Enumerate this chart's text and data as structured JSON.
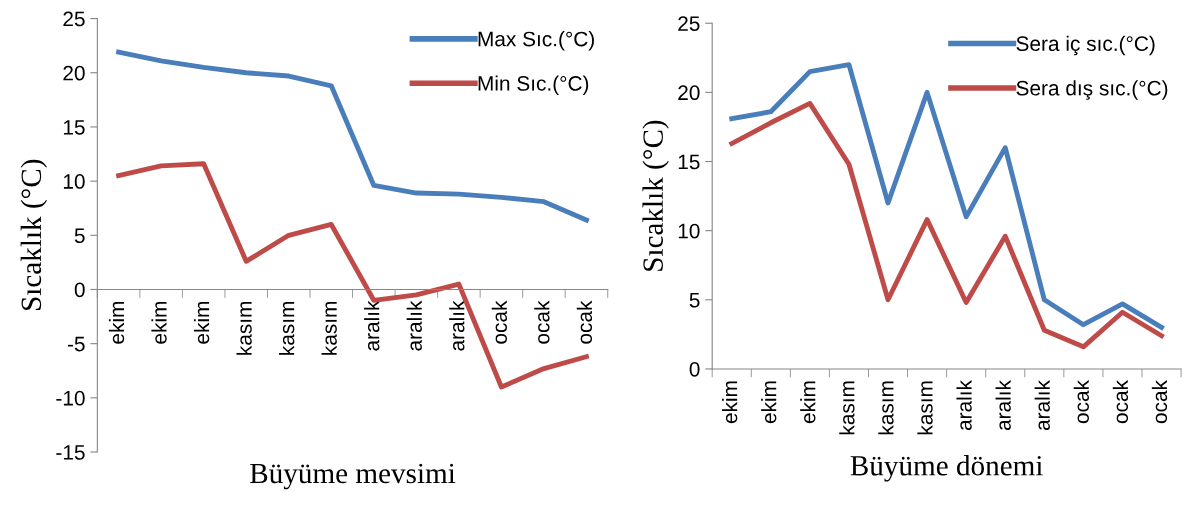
{
  "chart_data": [
    {
      "type": "line",
      "xlabel": "Büyüme mevsimi",
      "ylabel": "Sıcaklık (°C)",
      "categories": [
        "ekim",
        "ekim",
        "ekim",
        "kasım",
        "kasım",
        "kasım",
        "aralık",
        "aralık",
        "aralık",
        "ocak",
        "ocak",
        "ocak"
      ],
      "series": [
        {
          "name": "Max Sıc.(°C)",
          "color": "#4a7ebb",
          "values": [
            21.9,
            21.1,
            20.5,
            20.0,
            19.7,
            18.8,
            9.6,
            8.9,
            8.8,
            8.5,
            8.1,
            6.4
          ]
        },
        {
          "name": "Min Sıc.(°C)",
          "color": "#be4b48",
          "values": [
            10.5,
            11.4,
            11.6,
            2.6,
            5.0,
            6.0,
            -1.0,
            -0.5,
            0.5,
            -9.0,
            -7.3,
            -6.2
          ]
        }
      ],
      "ylim": [
        -15,
        25
      ],
      "yticks": [
        -15,
        -10,
        -5,
        0,
        5,
        10,
        15,
        20,
        25
      ],
      "legend": "top right",
      "grid": false,
      "marker": "none",
      "line_style": "solid"
    },
    {
      "type": "line",
      "xlabel": "Büyüme dönemi",
      "ylabel": "Sıcaklık (°C)",
      "categories": [
        "ekim",
        "ekim",
        "ekim",
        "kasım",
        "kasım",
        "kasım",
        "aralık",
        "aralık",
        "aralık",
        "ocak",
        "ocak",
        "ocak"
      ],
      "series": [
        {
          "name": "Sera iç sıc.(°C)",
          "color": "#4a7ebb",
          "values": [
            18.1,
            18.6,
            21.5,
            22.0,
            12.0,
            20.0,
            11.0,
            16.0,
            5.0,
            3.2,
            4.7,
            3.0
          ]
        },
        {
          "name": "Sera dış sıc.(°C)",
          "color": "#be4b48",
          "values": [
            16.3,
            17.8,
            19.2,
            14.8,
            5.0,
            10.8,
            4.8,
            9.6,
            2.8,
            1.6,
            4.1,
            2.4
          ]
        }
      ],
      "ylim": [
        0,
        25
      ],
      "yticks": [
        0,
        5,
        10,
        15,
        20,
        25
      ],
      "legend": "top right",
      "grid": false,
      "marker": "none",
      "line_style": "solid"
    }
  ]
}
